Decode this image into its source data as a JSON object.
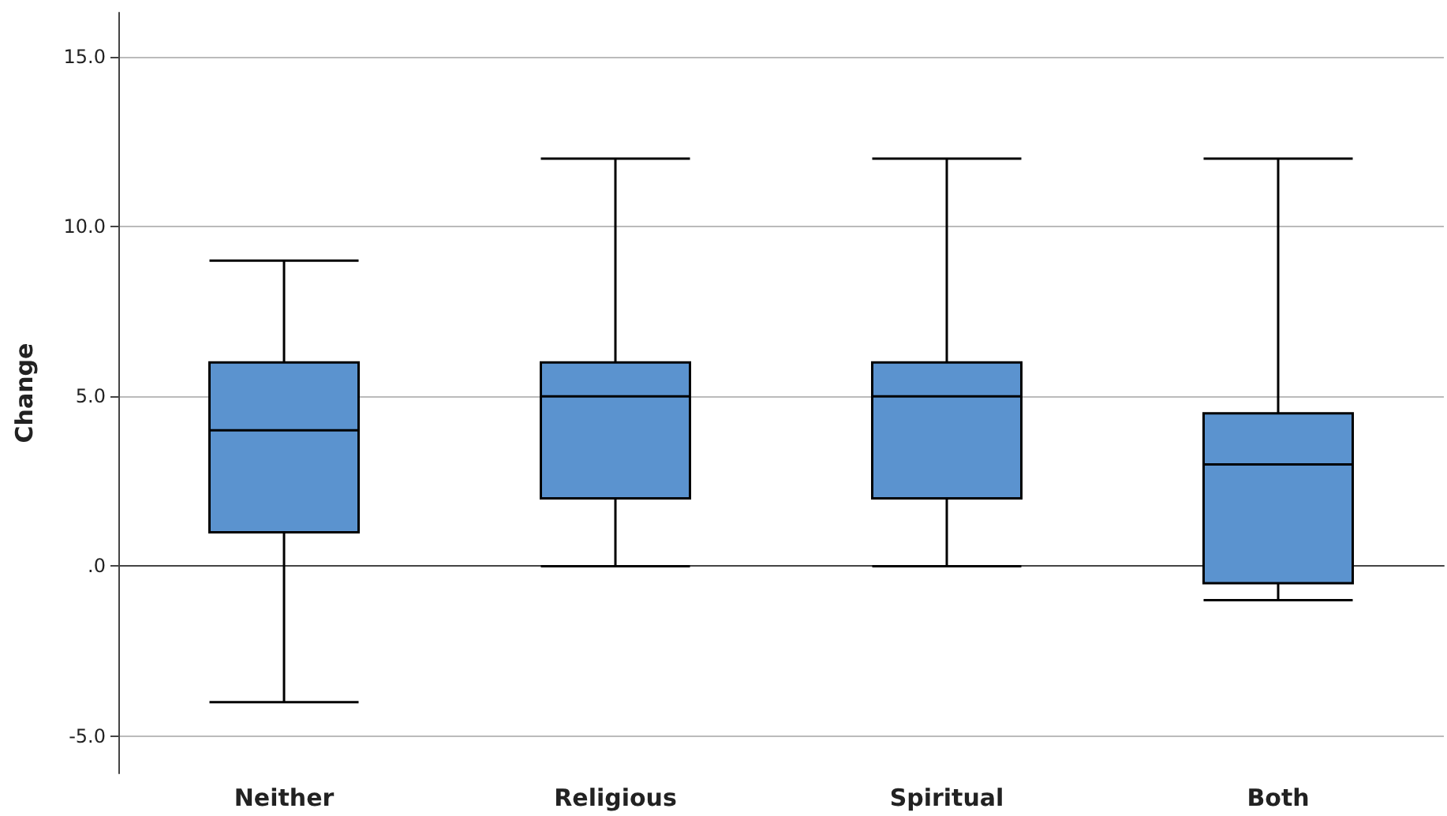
{
  "chart_data": {
    "type": "box",
    "ylabel": "Change",
    "categories": [
      "Neither",
      "Religious",
      "Spiritual",
      "Both"
    ],
    "boxes": [
      {
        "low": -4,
        "q1": 1,
        "median": 4,
        "q3": 6,
        "high": 9
      },
      {
        "low": 0,
        "q1": 2,
        "median": 5,
        "q3": 6,
        "high": 12
      },
      {
        "low": 0,
        "q1": 2,
        "median": 5,
        "q3": 6,
        "high": 12
      },
      {
        "low": -1,
        "q1": -0.5,
        "median": 3,
        "q3": 4.5,
        "high": 12
      }
    ],
    "color": "#5b93cf",
    "ylim": [
      -6.1,
      16.3
    ],
    "yticks": [
      {
        "value": -5,
        "label": "-5.0"
      },
      {
        "value": 0,
        "label": ".0"
      },
      {
        "value": 5,
        "label": "5.0"
      },
      {
        "value": 10,
        "label": "10.0"
      },
      {
        "value": 15,
        "label": "15.0"
      }
    ],
    "grid": "y"
  }
}
